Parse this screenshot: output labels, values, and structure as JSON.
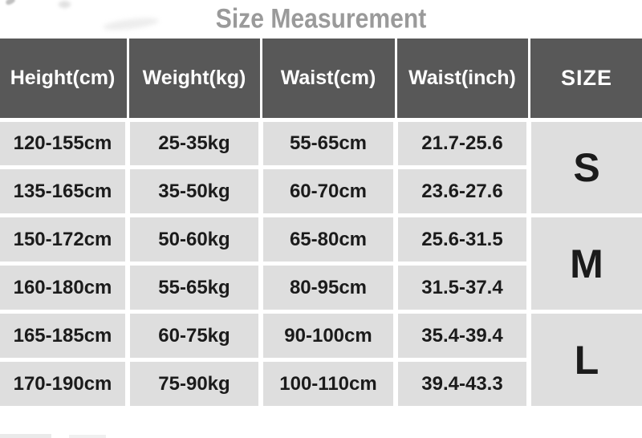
{
  "title": "Size Measurement",
  "chart_data": {
    "type": "table",
    "title": "Size Measurement",
    "columns": [
      "Height(cm)",
      "Weight(kg)",
      "Waist(cm)",
      "Waist(inch)",
      "SIZE"
    ],
    "rows": [
      [
        "120-155cm",
        "25-35kg",
        "55-65cm",
        "21.7-25.6",
        "S"
      ],
      [
        "135-165cm",
        "35-50kg",
        "60-70cm",
        "23.6-27.6",
        "S"
      ],
      [
        "150-172cm",
        "50-60kg",
        "65-80cm",
        "25.6-31.5",
        "M"
      ],
      [
        "160-180cm",
        "55-65kg",
        "80-95cm",
        "31.5-37.4",
        "M"
      ],
      [
        "165-185cm",
        "60-75kg",
        "90-100cm",
        "35.4-39.4",
        "L"
      ],
      [
        "170-190cm",
        "75-90kg",
        "100-110cm",
        "39.4-43.3",
        "L"
      ]
    ],
    "size_groups": [
      {
        "label": "S",
        "row_span": [
          1,
          2
        ]
      },
      {
        "label": "M",
        "row_span": [
          3,
          4
        ]
      },
      {
        "label": "L",
        "row_span": [
          5,
          6
        ]
      }
    ],
    "layout": {
      "grid": "off",
      "merged_size_column": true
    }
  },
  "colors": {
    "header_bg": "#585858",
    "header_text": "#ffffff",
    "cell_bg": "#dedede",
    "body_text": "#1b1b1b",
    "title_text": "#9a9a9a",
    "page_bg": "#ffffff"
  }
}
